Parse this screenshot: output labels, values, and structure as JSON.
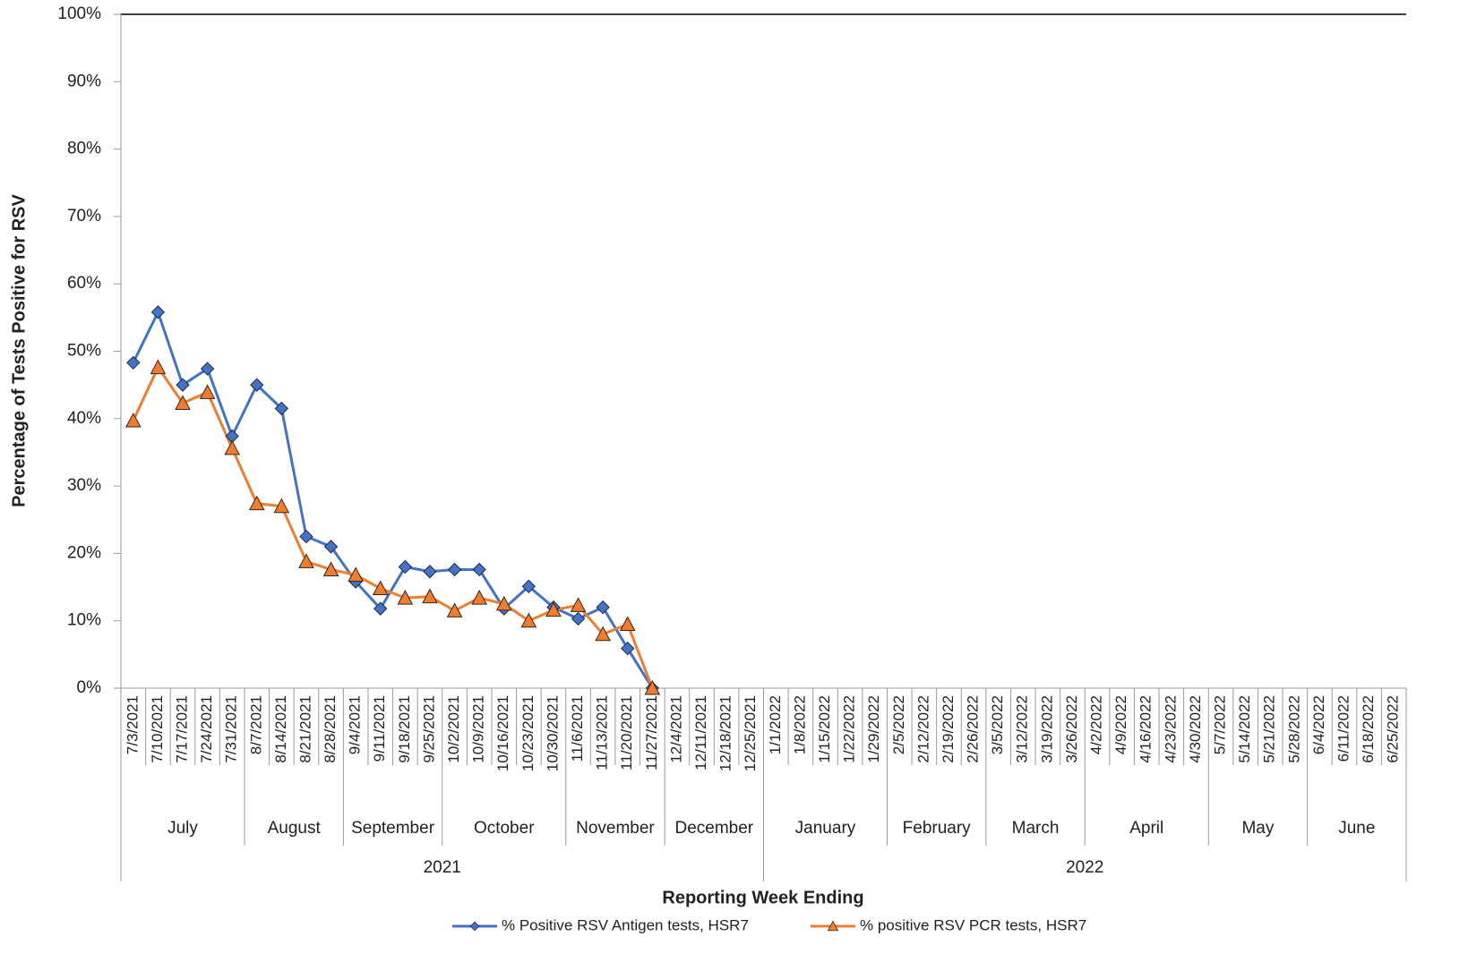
{
  "chart_data": {
    "type": "line",
    "y_axis_label": "Percentage of Tests Positive for RSV",
    "x_axis_label": "Reporting Week Ending",
    "categories": [
      "7/3/2021",
      "7/10/2021",
      "7/17/2021",
      "7/24/2021",
      "7/31/2021",
      "8/7/2021",
      "8/14/2021",
      "8/21/2021",
      "8/28/2021",
      "9/4/2021",
      "9/11/2021",
      "9/18/2021",
      "9/25/2021",
      "10/2/2021",
      "10/9/2021",
      "10/16/2021",
      "10/23/2021",
      "10/30/2021",
      "11/6/2021",
      "11/13/2021",
      "11/20/2021",
      "11/27/2021",
      "12/4/2021",
      "12/11/2021",
      "12/18/2021",
      "12/25/2021",
      "1/1/2022",
      "1/8/2022",
      "1/15/2022",
      "1/22/2022",
      "1/29/2022",
      "2/5/2022",
      "2/12/2022",
      "2/19/2022",
      "2/26/2022",
      "3/5/2022",
      "3/12/2022",
      "3/19/2022",
      "3/26/2022",
      "4/2/2022",
      "4/9/2022",
      "4/16/2022",
      "4/23/2022",
      "4/30/2022",
      "5/7/2022",
      "5/14/2022",
      "5/21/2022",
      "5/28/2022",
      "6/4/2022",
      "6/11/2022",
      "6/18/2022",
      "6/25/2022"
    ],
    "month_groups": [
      {
        "label": "July",
        "count": 5
      },
      {
        "label": "August",
        "count": 4
      },
      {
        "label": "September",
        "count": 4
      },
      {
        "label": "October",
        "count": 5
      },
      {
        "label": "November",
        "count": 4
      },
      {
        "label": "December",
        "count": 4
      },
      {
        "label": "January",
        "count": 5
      },
      {
        "label": "February",
        "count": 4
      },
      {
        "label": "March",
        "count": 4
      },
      {
        "label": "April",
        "count": 5
      },
      {
        "label": "May",
        "count": 4
      },
      {
        "label": "June",
        "count": 4
      }
    ],
    "year_groups": [
      {
        "label": "2021",
        "count": 26
      },
      {
        "label": "2022",
        "count": 26
      }
    ],
    "series": [
      {
        "name": "% Positive RSV Antigen tests, HSR7",
        "color": "#4472c4",
        "marker": "diamond",
        "values": [
          48.3,
          55.8,
          45,
          47.4,
          37.4,
          45,
          41.5,
          22.5,
          21,
          15.8,
          11.8,
          18,
          17.3,
          17.6,
          17.6,
          11.8,
          15.1,
          12,
          10.3,
          12,
          5.9,
          0,
          null,
          null,
          null,
          null,
          null,
          null,
          null,
          null,
          null,
          null,
          null,
          null,
          null,
          null,
          null,
          null,
          null,
          null,
          null,
          null,
          null,
          null,
          null,
          null,
          null,
          null,
          null,
          null,
          null,
          null
        ]
      },
      {
        "name": "% positive RSV PCR tests, HSR7",
        "color": "#ed7d31",
        "marker": "triangle",
        "values": [
          39.7,
          47.6,
          42.3,
          43.9,
          35.6,
          27.4,
          27,
          18.8,
          17.6,
          16.8,
          14.8,
          13.4,
          13.6,
          11.5,
          13.4,
          12.5,
          10,
          11.6,
          12.3,
          8,
          9.5,
          0,
          null,
          null,
          null,
          null,
          null,
          null,
          null,
          null,
          null,
          null,
          null,
          null,
          null,
          null,
          null,
          null,
          null,
          null,
          null,
          null,
          null,
          null,
          null,
          null,
          null,
          null,
          null,
          null,
          null,
          null
        ]
      }
    ],
    "ylim": [
      0,
      100
    ],
    "yticks": [
      {
        "value": 0,
        "label": "0%"
      },
      {
        "value": 10,
        "label": "10%"
      },
      {
        "value": 20,
        "label": "20%"
      },
      {
        "value": 30,
        "label": "30%"
      },
      {
        "value": 40,
        "label": "40%"
      },
      {
        "value": 50,
        "label": "50%"
      },
      {
        "value": 60,
        "label": "60%"
      },
      {
        "value": 70,
        "label": "70%"
      },
      {
        "value": 80,
        "label": "80%"
      },
      {
        "value": 90,
        "label": "90%"
      },
      {
        "value": 100,
        "label": "100%"
      }
    ],
    "grid": false,
    "legend": "bottom"
  }
}
